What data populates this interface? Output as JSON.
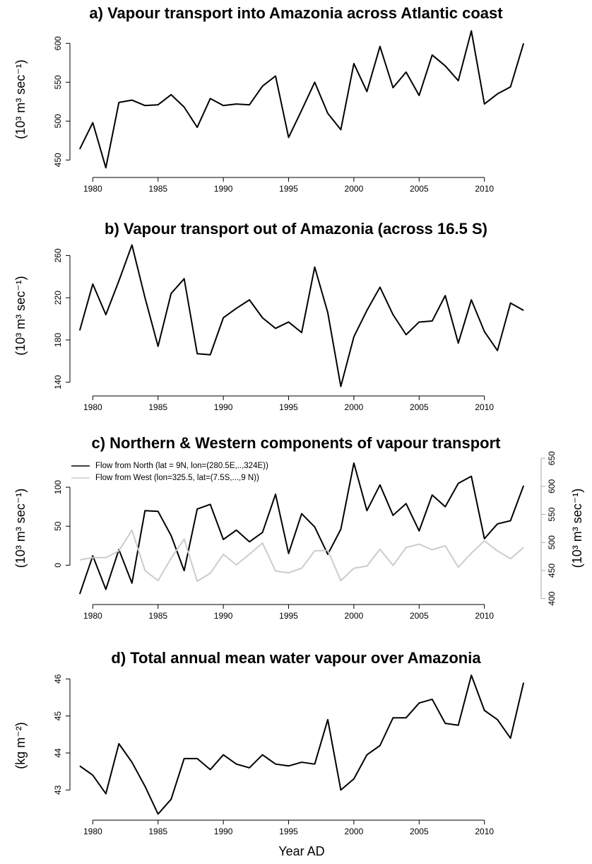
{
  "chart_data": [
    {
      "type": "line",
      "title": "a) Vapour transport into Amazonia across Atlantic coast",
      "y_label": "(10³ m³ sec⁻¹)",
      "x": [
        1979,
        1980,
        1981,
        1982,
        1983,
        1984,
        1985,
        1986,
        1987,
        1988,
        1989,
        1990,
        1991,
        1992,
        1993,
        1994,
        1995,
        1996,
        1997,
        1998,
        1999,
        2000,
        2001,
        2002,
        2003,
        2004,
        2005,
        2006,
        2007,
        2008,
        2009,
        2010,
        2011,
        2012,
        2013
      ],
      "series": [
        {
          "color": "#000000",
          "values": [
            464,
            498,
            440,
            524,
            527,
            520,
            521,
            534,
            518,
            492,
            529,
            520,
            522,
            521,
            545,
            558,
            479,
            514,
            550,
            510,
            489,
            574,
            538,
            596,
            543,
            563,
            533,
            585,
            571,
            552,
            616,
            522,
            535,
            544,
            600
          ]
        }
      ],
      "xlim": [
        1977.6,
        2014.4
      ],
      "xticks": [
        1980,
        1985,
        1990,
        1995,
        2000,
        2005,
        2010
      ],
      "ylim": [
        433,
        623
      ],
      "yticks": [
        450,
        500,
        550,
        600
      ]
    },
    {
      "type": "line",
      "title": "b) Vapour transport out of Amazonia (across 16.5 S)",
      "y_label": "(10³ m³ sec⁻¹)",
      "x": [
        1979,
        1980,
        1981,
        1982,
        1983,
        1984,
        1985,
        1986,
        1987,
        1988,
        1989,
        1990,
        1991,
        1992,
        1993,
        1994,
        1995,
        1996,
        1997,
        1998,
        1999,
        2000,
        2001,
        2002,
        2003,
        2004,
        2005,
        2006,
        2007,
        2008,
        2009,
        2010,
        2011,
        2012,
        2013
      ],
      "series": [
        {
          "color": "#000000",
          "values": [
            189,
            233,
            204,
            236,
            270,
            220,
            174,
            224,
            238,
            167,
            166,
            201,
            210,
            218,
            201,
            191,
            197,
            187,
            249,
            206,
            136,
            183,
            208,
            230,
            204,
            185,
            197,
            198,
            222,
            177,
            218,
            188,
            170,
            215,
            208
          ]
        }
      ],
      "xlim": [
        1977.6,
        2014.4
      ],
      "xticks": [
        1980,
        1985,
        1990,
        1995,
        2000,
        2005,
        2010
      ],
      "ylim": [
        131,
        275
      ],
      "yticks": [
        140,
        180,
        220,
        260
      ]
    },
    {
      "type": "line",
      "title": "c) Northern & Western components of vapour transport",
      "y_label": "(10³ m³ sec⁻¹)",
      "y2_label": "(10³ m³ sec⁻¹)",
      "legend": "topleft",
      "x": [
        1979,
        1980,
        1981,
        1982,
        1983,
        1984,
        1985,
        1986,
        1987,
        1988,
        1989,
        1990,
        1991,
        1992,
        1993,
        1994,
        1995,
        1996,
        1997,
        1998,
        1999,
        2000,
        2001,
        2002,
        2003,
        2004,
        2005,
        2006,
        2007,
        2008,
        2009,
        2010,
        2011,
        2012,
        2013
      ],
      "series": [
        {
          "name": "Flow from North (lat = 9N, lon=(280.5E,..,324E))",
          "color": "#000000",
          "values": [
            -37,
            12,
            -31,
            20,
            -23,
            70,
            69,
            38,
            -7,
            72,
            78,
            33,
            45,
            30,
            42,
            91,
            15,
            66,
            49,
            14,
            46,
            131,
            70,
            103,
            64,
            79,
            44,
            90,
            75,
            105,
            114,
            34,
            53,
            57,
            102
          ]
        },
        {
          "name": "Flow from West (lon=325.5, lat=(7.5S,...,9 N))",
          "color": "#cccccc",
          "axis": "y2",
          "values": [
            469,
            473,
            473,
            485,
            522,
            450,
            432,
            472,
            506,
            431,
            445,
            479,
            460,
            479,
            499,
            449,
            446,
            454,
            485,
            486,
            432,
            454,
            458,
            488,
            459,
            491,
            497,
            487,
            494,
            456,
            481,
            503,
            485,
            471,
            491
          ]
        }
      ],
      "xlim": [
        1977.6,
        2014.4
      ],
      "xticks": [
        1980,
        1985,
        1990,
        1995,
        2000,
        2005,
        2010
      ],
      "ylim": [
        -45,
        140
      ],
      "yticks": [
        0,
        50,
        100
      ],
      "y2lim": [
        397,
        654
      ],
      "y2ticks": [
        400,
        450,
        500,
        550,
        600,
        650
      ]
    },
    {
      "type": "line",
      "title": "d) Total annual mean water vapour over Amazonia",
      "y_label": "(kg m⁻²)",
      "x_label": "Year AD",
      "x": [
        1979,
        1980,
        1981,
        1982,
        1983,
        1984,
        1985,
        1986,
        1987,
        1988,
        1989,
        1990,
        1991,
        1992,
        1993,
        1994,
        1995,
        1996,
        1997,
        1998,
        1999,
        2000,
        2001,
        2002,
        2003,
        2004,
        2005,
        2006,
        2007,
        2008,
        2009,
        2010,
        2011,
        2012,
        2013
      ],
      "series": [
        {
          "color": "#000000",
          "values": [
            43.65,
            43.4,
            42.9,
            44.25,
            43.75,
            43.1,
            42.35,
            42.75,
            43.85,
            43.85,
            43.55,
            43.95,
            43.7,
            43.6,
            43.95,
            43.7,
            43.65,
            43.75,
            43.7,
            44.9,
            43.0,
            43.3,
            43.95,
            44.2,
            44.95,
            44.95,
            45.35,
            45.45,
            44.8,
            44.75,
            46.1,
            45.15,
            44.9,
            44.4,
            45.9
          ]
        }
      ],
      "xlim": [
        1977.6,
        2014.4
      ],
      "xticks": [
        1980,
        1985,
        1990,
        1995,
        2000,
        2005,
        2010
      ],
      "ylim": [
        42.3,
        46.1
      ],
      "yticks": [
        43,
        44,
        45,
        46
      ]
    }
  ]
}
